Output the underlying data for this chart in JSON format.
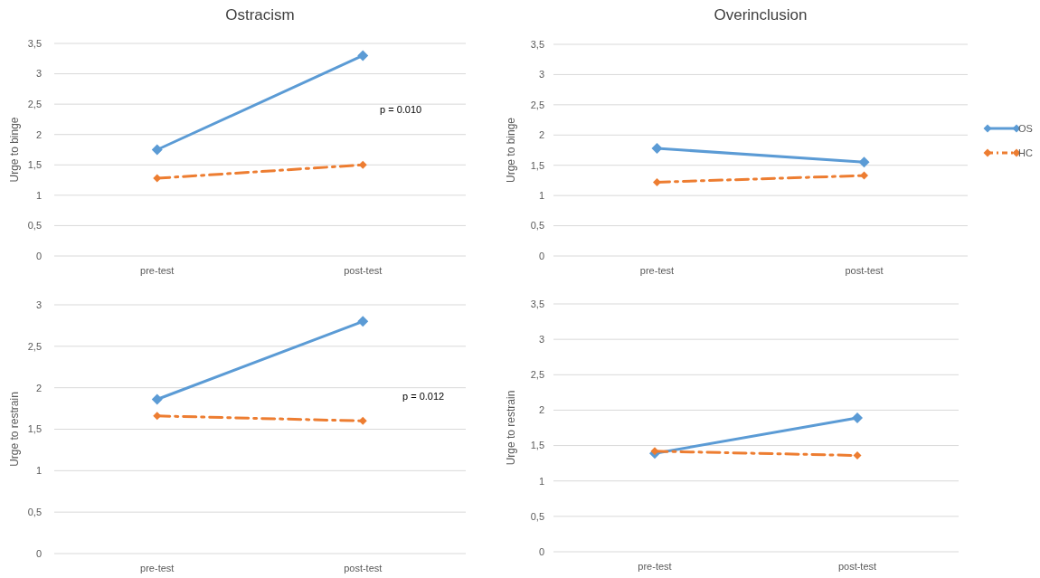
{
  "chart_data": [
    {
      "type": "line",
      "title": "Ostracism",
      "ylabel": "Urge to binge",
      "categories": [
        "pre-test",
        "post-test"
      ],
      "ylim": [
        0,
        3.5
      ],
      "yticks": [
        0,
        {
          "value": 0.5,
          "label": "0,5"
        },
        1,
        {
          "value": 1.5,
          "label": "1,5"
        },
        2,
        {
          "value": 2.5,
          "label": "2,5"
        },
        3,
        {
          "value": 3.5,
          "label": "3,5"
        }
      ],
      "grid": "y",
      "marker": "diamond",
      "legend": false,
      "annotations": [
        "p = 0.010"
      ],
      "series": [
        {
          "color": "#5b9bd5",
          "line_style": "solid",
          "values": [
            1.75,
            3.3
          ]
        },
        {
          "color": "#ed7d31",
          "line_style": "dashed",
          "values": [
            1.28,
            1.5
          ]
        }
      ]
    },
    {
      "type": "line",
      "title": "Overinclusion",
      "ylabel": "Urge to binge",
      "categories": [
        "pre-test",
        "post-test"
      ],
      "ylim": [
        0,
        3.5
      ],
      "yticks": [
        0,
        {
          "value": 0.5,
          "label": "0,5"
        },
        1,
        {
          "value": 1.5,
          "label": "1,5"
        },
        2,
        {
          "value": 2.5,
          "label": "2,5"
        },
        3,
        {
          "value": 3.5,
          "label": "3,5"
        }
      ],
      "grid": "y",
      "marker": "diamond",
      "legend": "right",
      "series": [
        {
          "name": "OS",
          "color": "#5b9bd5",
          "line_style": "solid",
          "values": [
            1.78,
            1.55
          ]
        },
        {
          "name": "HC",
          "color": "#ed7d31",
          "line_style": "dashed",
          "values": [
            1.22,
            1.33
          ]
        }
      ]
    },
    {
      "type": "line",
      "ylabel": "Urge to restrain",
      "categories": [
        "pre-test",
        "post-test"
      ],
      "ylim": [
        0,
        3
      ],
      "yticks": [
        0,
        {
          "value": 0.5,
          "label": "0,5"
        },
        1,
        {
          "value": 1.5,
          "label": "1,5"
        },
        2,
        {
          "value": 2.5,
          "label": "2,5"
        },
        3
      ],
      "grid": "y",
      "marker": "diamond",
      "legend": false,
      "annotations": [
        "p = 0.012"
      ],
      "series": [
        {
          "color": "#5b9bd5",
          "line_style": "solid",
          "values": [
            1.86,
            2.8
          ]
        },
        {
          "color": "#ed7d31",
          "line_style": "dashed",
          "values": [
            1.66,
            1.6
          ]
        }
      ]
    },
    {
      "type": "line",
      "ylabel": "Urge to restrain",
      "categories": [
        "pre-test",
        "post-test"
      ],
      "ylim": [
        0,
        3.5
      ],
      "yticks": [
        0,
        {
          "value": 0.5,
          "label": "0,5"
        },
        1,
        {
          "value": 1.5,
          "label": "1,5"
        },
        2,
        {
          "value": 2.5,
          "label": "2,5"
        },
        3,
        {
          "value": 3.5,
          "label": "3,5"
        }
      ],
      "grid": "y",
      "marker": "diamond",
      "legend": false,
      "series": [
        {
          "color": "#5b9bd5",
          "line_style": "solid",
          "values": [
            1.39,
            1.89
          ]
        },
        {
          "color": "#ed7d31",
          "line_style": "dashed",
          "values": [
            1.42,
            1.36
          ]
        }
      ]
    }
  ]
}
